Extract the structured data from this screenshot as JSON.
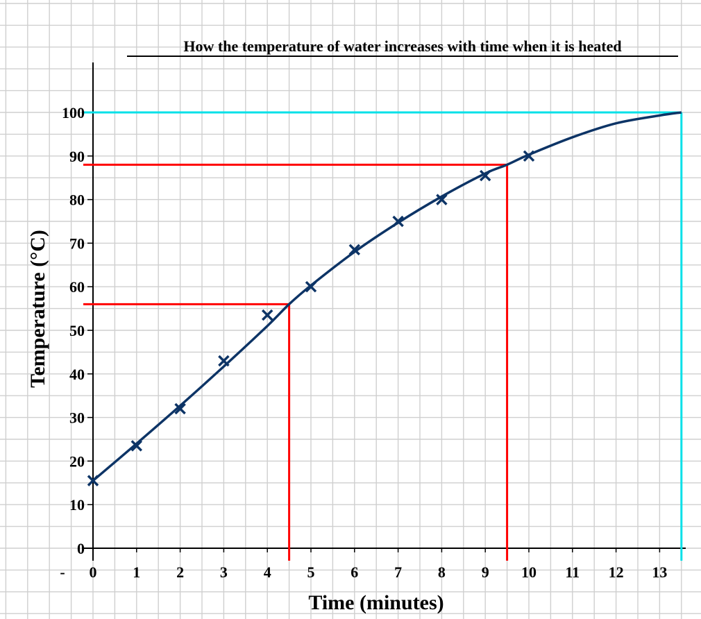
{
  "chart_data": {
    "type": "scatter",
    "title": "How the temperature of water increases with time when it is heated",
    "xlabel": "Time (minutes)",
    "ylabel": "Temperature (°C)",
    "xlim": [
      0,
      13.5
    ],
    "ylim": [
      0,
      100
    ],
    "x_ticks": [
      "0",
      "1",
      "2",
      "3",
      "4",
      "5",
      "6",
      "7",
      "8",
      "9",
      "10",
      "11",
      "12",
      "13"
    ],
    "y_ticks": [
      "0",
      "10",
      "20",
      "30",
      "40",
      "50",
      "60",
      "70",
      "80",
      "90",
      "100"
    ],
    "stray_tick_label": "-",
    "grid": true,
    "series": [
      {
        "marker": "x",
        "color": "#0d3466",
        "points": [
          {
            "x": 0,
            "y": 15.5
          },
          {
            "x": 1,
            "y": 23.5
          },
          {
            "x": 2,
            "y": 32
          },
          {
            "x": 3,
            "y": 43
          },
          {
            "x": 4,
            "y": 53.5
          },
          {
            "x": 5,
            "y": 60
          },
          {
            "x": 6,
            "y": 68.5
          },
          {
            "x": 7,
            "y": 75
          },
          {
            "x": 8,
            "y": 80
          },
          {
            "x": 9,
            "y": 85.5
          },
          {
            "x": 10,
            "y": 90
          }
        ]
      }
    ],
    "curve_of_best_fit": {
      "color": "#0d3466",
      "points": [
        {
          "x": 0,
          "y": 15.5
        },
        {
          "x": 1,
          "y": 24
        },
        {
          "x": 2,
          "y": 32.7
        },
        {
          "x": 3,
          "y": 41.7
        },
        {
          "x": 4,
          "y": 51
        },
        {
          "x": 4.5,
          "y": 56
        },
        {
          "x": 5,
          "y": 60.3
        },
        {
          "x": 6,
          "y": 68
        },
        {
          "x": 7,
          "y": 74.7
        },
        {
          "x": 8,
          "y": 80.7
        },
        {
          "x": 9,
          "y": 86
        },
        {
          "x": 9.5,
          "y": 88
        },
        {
          "x": 10,
          "y": 90.3
        },
        {
          "x": 11,
          "y": 94.3
        },
        {
          "x": 12,
          "y": 97.5
        },
        {
          "x": 13,
          "y": 99.3
        },
        {
          "x": 13.5,
          "y": 100
        }
      ]
    },
    "reading_lines": [
      {
        "x": 4.5,
        "y": 56,
        "color": "#ff0000"
      },
      {
        "x": 9.5,
        "y": 88,
        "color": "#ff0000"
      },
      {
        "x": 13.5,
        "y": 100,
        "color": "#00e0e8"
      }
    ],
    "colors": {
      "grid": "#cfcfcf",
      "axis": "#000000",
      "data": "#0d3466",
      "reading_red": "#ff0000",
      "reading_cyan": "#00e0e8"
    }
  }
}
